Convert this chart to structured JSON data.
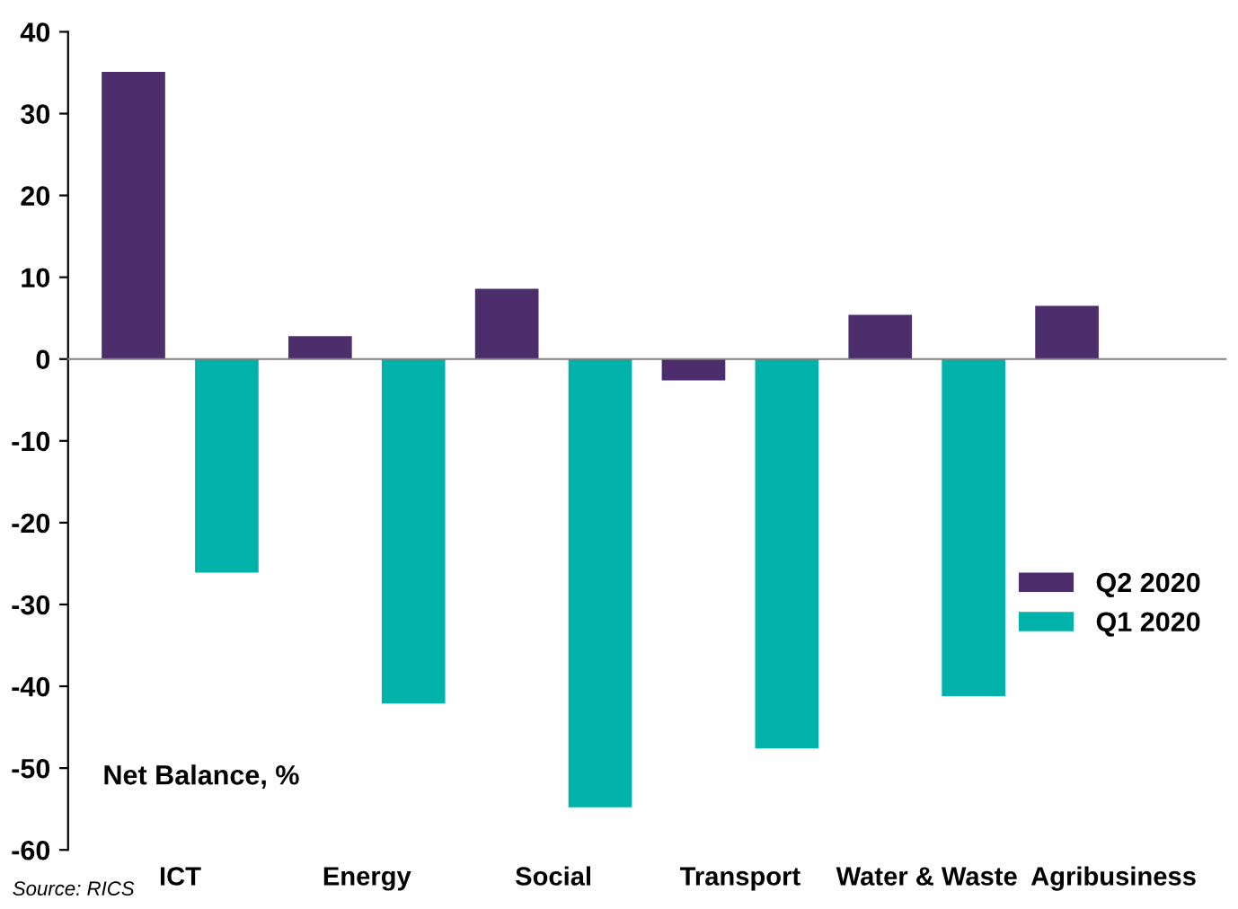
{
  "chart_data": {
    "type": "bar",
    "categories": [
      "ICT",
      "Energy",
      "Social",
      "Transport",
      "Water & Waste",
      "Agribusiness"
    ],
    "series": [
      {
        "name": "Q2 2020",
        "color": "#4b2e6b",
        "values": [
          35.1,
          2.8,
          8.6,
          -2.6,
          5.4,
          6.5
        ]
      },
      {
        "name": "Q1 2020",
        "color": "#00b2a9",
        "values": [
          -26.1,
          -42.1,
          -54.8,
          -47.6,
          -41.2,
          null
        ]
      }
    ],
    "ylim": [
      -60,
      40
    ],
    "yticks": [
      -60,
      -50,
      -40,
      -30,
      -20,
      -10,
      0,
      10,
      20,
      30,
      40
    ],
    "legend": "right",
    "annotations": [
      "Net Balance, %",
      "Source: RICS"
    ]
  }
}
